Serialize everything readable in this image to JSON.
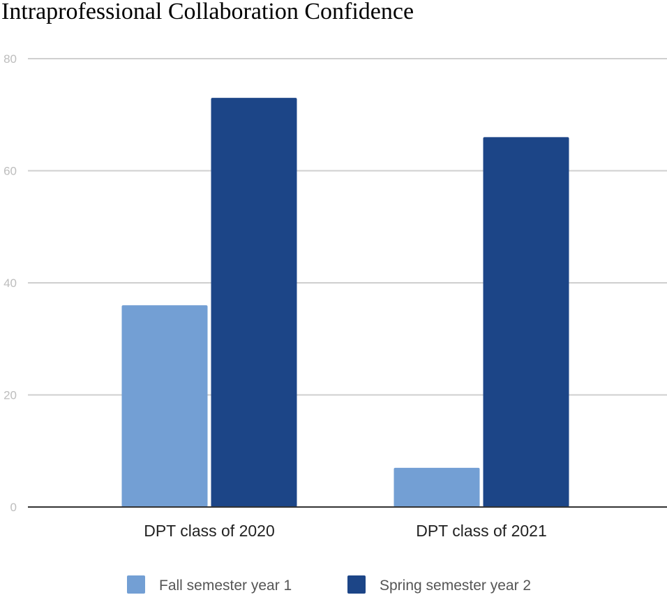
{
  "chart_data": {
    "type": "bar",
    "title": "Intraprofessional Collaboration Confidence",
    "xlabel": "",
    "ylabel": "",
    "ylim": [
      0,
      80
    ],
    "yticks": [
      0,
      20,
      40,
      60,
      80
    ],
    "grid": true,
    "legend_position": "bottom",
    "categories": [
      "DPT class of 2020",
      "DPT class of 2021"
    ],
    "series": [
      {
        "name": "Fall semester year 1",
        "color": "#739fd4",
        "values": [
          36,
          7
        ]
      },
      {
        "name": "Spring semester year 2",
        "color": "#1c4587",
        "values": [
          73,
          66
        ]
      }
    ]
  }
}
